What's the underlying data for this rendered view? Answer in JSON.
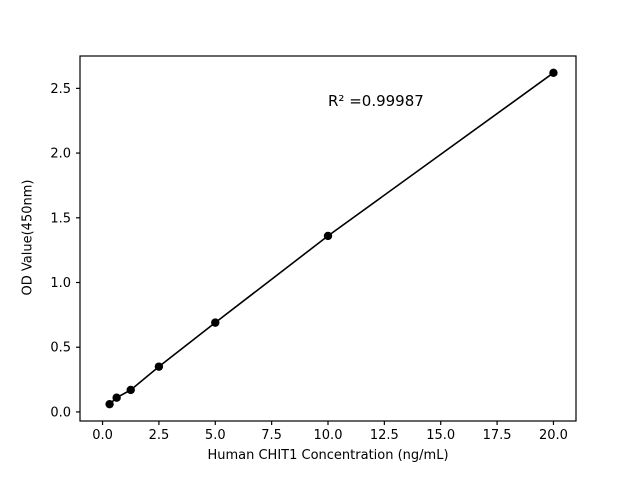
{
  "chart_data": {
    "type": "scatter",
    "title": "",
    "xlabel": "Human CHIT1 Concentration (ng/mL)",
    "ylabel": "OD Value(450nm)",
    "annotation": "R² =0.99987",
    "x": [
      0.3125,
      0.625,
      1.25,
      2.5,
      5,
      10,
      20
    ],
    "y": [
      0.06,
      0.11,
      0.17,
      0.35,
      0.69,
      1.36,
      2.62
    ],
    "xticks": [
      0.0,
      2.5,
      5.0,
      7.5,
      10.0,
      12.5,
      15.0,
      17.5,
      20.0
    ],
    "xtick_labels": [
      "0.0",
      "2.5",
      "5.0",
      "7.5",
      "10.0",
      "12.5",
      "15.0",
      "17.5",
      "20.0"
    ],
    "yticks": [
      0.0,
      0.5,
      1.0,
      1.5,
      2.0,
      2.5
    ],
    "ytick_labels": [
      "0.0",
      "0.5",
      "1.0",
      "1.5",
      "2.0",
      "2.5"
    ],
    "xlim": [
      -1,
      21
    ],
    "ylim": [
      -0.07,
      2.75
    ],
    "grid": false,
    "line_through_points": true,
    "legend": "none",
    "line_color": "#000000",
    "marker_color": "#000000",
    "axis_color": "#000000",
    "background_color": "#ffffff"
  }
}
